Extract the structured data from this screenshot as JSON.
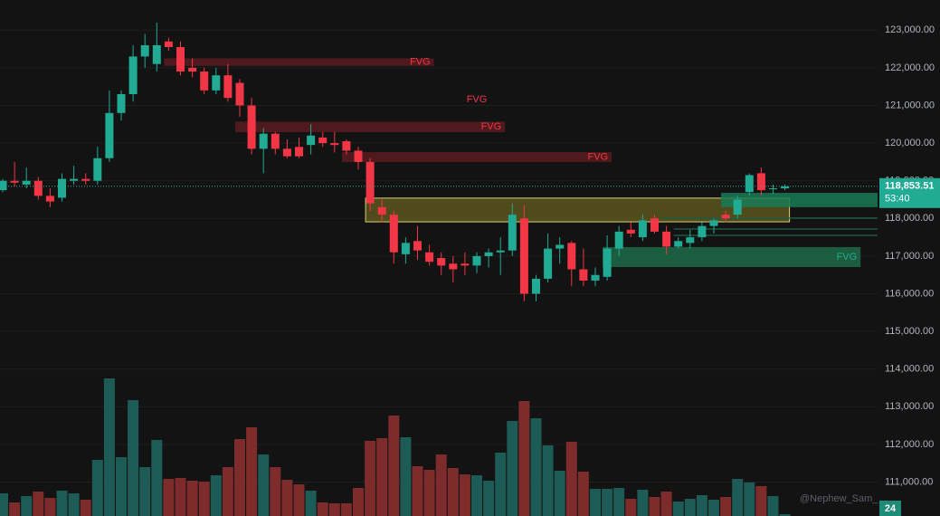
{
  "chart_data": {
    "type": "candlestick",
    "open": [
      118750,
      119000,
      118900,
      119000,
      118600,
      118550,
      119000,
      119050,
      119000,
      119600,
      120800,
      121300,
      122300,
      122100,
      122700,
      122550,
      122000,
      121900,
      121400,
      121800,
      121600,
      121000,
      119850,
      120250,
      119850,
      119900,
      119950,
      120150,
      120000,
      120050,
      119800,
      119500,
      118300,
      118100,
      117050,
      117400,
      117100,
      116950,
      116800,
      116800,
      116750,
      117000,
      117100,
      117150,
      118000,
      116000,
      116400,
      117200,
      117350,
      116650,
      116350,
      116450,
      117200,
      117700,
      117500,
      118000,
      117650,
      117250,
      117350,
      117500,
      117800,
      118100,
      118100,
      118700,
      119200,
      118800,
      118800
    ],
    "high": [
      119050,
      119500,
      119350,
      119100,
      118800,
      119200,
      119400,
      119200,
      119900,
      121400,
      121400,
      122600,
      122900,
      123200,
      122800,
      122700,
      122250,
      122000,
      122000,
      122100,
      121700,
      121200,
      120400,
      120300,
      120100,
      120150,
      120500,
      120300,
      120300,
      120100,
      119900,
      119600,
      118500,
      118200,
      117500,
      117800,
      117300,
      117100,
      117000,
      117100,
      117100,
      117200,
      117500,
      118400,
      118350,
      116500,
      117600,
      117500,
      117400,
      117200,
      116700,
      117550,
      117800,
      117900,
      118100,
      118100,
      117800,
      117500,
      117700,
      117900,
      118000,
      118200,
      118600,
      119200,
      119350,
      118900,
      118900
    ],
    "low": [
      118700,
      118850,
      118800,
      118500,
      118300,
      118450,
      118900,
      118900,
      118900,
      119500,
      120600,
      121100,
      122000,
      121900,
      122450,
      121800,
      121750,
      121300,
      121300,
      121100,
      120700,
      119700,
      119200,
      119700,
      119600,
      119600,
      119700,
      119900,
      119750,
      119700,
      119300,
      118200,
      117900,
      116800,
      116800,
      116900,
      116750,
      116500,
      116300,
      116500,
      116550,
      116700,
      116500,
      117000,
      115800,
      115800,
      116300,
      116800,
      116200,
      116200,
      116200,
      116350,
      117000,
      117500,
      117400,
      117600,
      117050,
      117200,
      117200,
      117400,
      117600,
      117900,
      118000,
      118600,
      118600,
      118650,
      118750
    ],
    "close": [
      119000,
      118950,
      119000,
      118600,
      118450,
      119050,
      119050,
      119000,
      119600,
      120800,
      121300,
      122300,
      122600,
      122600,
      122550,
      121900,
      121900,
      121400,
      121800,
      121200,
      121000,
      119850,
      120250,
      119850,
      119650,
      119650,
      120200,
      120000,
      119950,
      119800,
      119500,
      118400,
      118100,
      117100,
      117350,
      117150,
      116850,
      116750,
      116650,
      116750,
      117000,
      117100,
      117150,
      118100,
      116000,
      116400,
      117200,
      117300,
      116650,
      116350,
      116500,
      117200,
      117650,
      117600,
      117950,
      117650,
      117250,
      117400,
      117500,
      117800,
      117950,
      118000,
      118500,
      119150,
      118750,
      118800,
      118853.51
    ],
    "volume": [
      25,
      15,
      22,
      27,
      20,
      28,
      25,
      18,
      62,
      152,
      65,
      128,
      54,
      84,
      41,
      42,
      39,
      38,
      45,
      54,
      85,
      98,
      68,
      54,
      40,
      35,
      28,
      15,
      14,
      14,
      31,
      83,
      86,
      111,
      87,
      55,
      51,
      68,
      53,
      46,
      45,
      39,
      70,
      105,
      127,
      108,
      78,
      50,
      82,
      49,
      30,
      30,
      31,
      19,
      29,
      21,
      27,
      16,
      19,
      23,
      18,
      21,
      41,
      37,
      33,
      22,
      2
    ],
    "volume_ylim": [
      0,
      200
    ],
    "ylim": [
      110100,
      123800
    ],
    "yticks": [
      {
        "value": 111000,
        "label": "111,000.00"
      },
      {
        "value": 112000,
        "label": "112,000.00"
      },
      {
        "value": 113000,
        "label": "113,000.00"
      },
      {
        "value": 114000,
        "label": "114,000.00"
      },
      {
        "value": 115000,
        "label": "115,000.00"
      },
      {
        "value": 116000,
        "label": "116,000.00"
      },
      {
        "value": 117000,
        "label": "117,000.00"
      },
      {
        "value": 118000,
        "label": "118,000.00"
      },
      {
        "value": 119000,
        "label": "119,000.00"
      },
      {
        "value": 120000,
        "label": "120,000.00"
      },
      {
        "value": 121000,
        "label": "121,000.00"
      },
      {
        "value": 122000,
        "label": "122,000.00"
      },
      {
        "value": 123000,
        "label": "123,000.00"
      }
    ],
    "grid": true,
    "up_color": "#22ab94",
    "down_color": "#f23645",
    "volume_up_color": "#1d5b56",
    "volume_down_color": "#7e2b2b",
    "zones": [
      {
        "label": "FVG",
        "low": 122050,
        "high": 122250,
        "from": 14,
        "to": 36,
        "color": "#5a1c20",
        "text_color": "#f23645"
      },
      {
        "label": "FVG",
        "low": 120290,
        "high": 120570,
        "from": 20,
        "to": 42,
        "color": "#5a1c20",
        "text_color": "#f23645"
      },
      {
        "label": "FVG",
        "low": 119500,
        "high": 119760,
        "from": 29,
        "to": 51,
        "color": "#5a1c20",
        "text_color": "#f23645"
      },
      {
        "low": 117910,
        "high": 118540,
        "from": 31,
        "to": 66,
        "color": "#6b6420",
        "border": "#d8cf7a"
      },
      {
        "low": 118300,
        "high": 118680,
        "from": 61,
        "to": 74,
        "color": "#197a55"
      },
      {
        "low": 117990,
        "high": 118030,
        "from": 56,
        "to": 74,
        "color": "#1c5e44"
      },
      {
        "low": 117700,
        "high": 117740,
        "from": 57,
        "to": 74,
        "color": "#1c5e44"
      },
      {
        "low": 117530,
        "high": 117570,
        "from": 57,
        "to": 74,
        "color": "#1c5e44"
      },
      {
        "label": "FVG",
        "low": 116710,
        "high": 117240,
        "from": 51,
        "to": 72,
        "color": "#1d6b46",
        "text_color": "#22ab94"
      }
    ],
    "annotations": [
      {
        "text": "FVG",
        "x": 40,
        "y": 121150,
        "color": "#f23645"
      }
    ],
    "last_price": {
      "value": 118853.51,
      "label": "118,853.51"
    },
    "countdown": "53:40",
    "badge": "24",
    "watermark": "@Nephew_Sam_"
  }
}
